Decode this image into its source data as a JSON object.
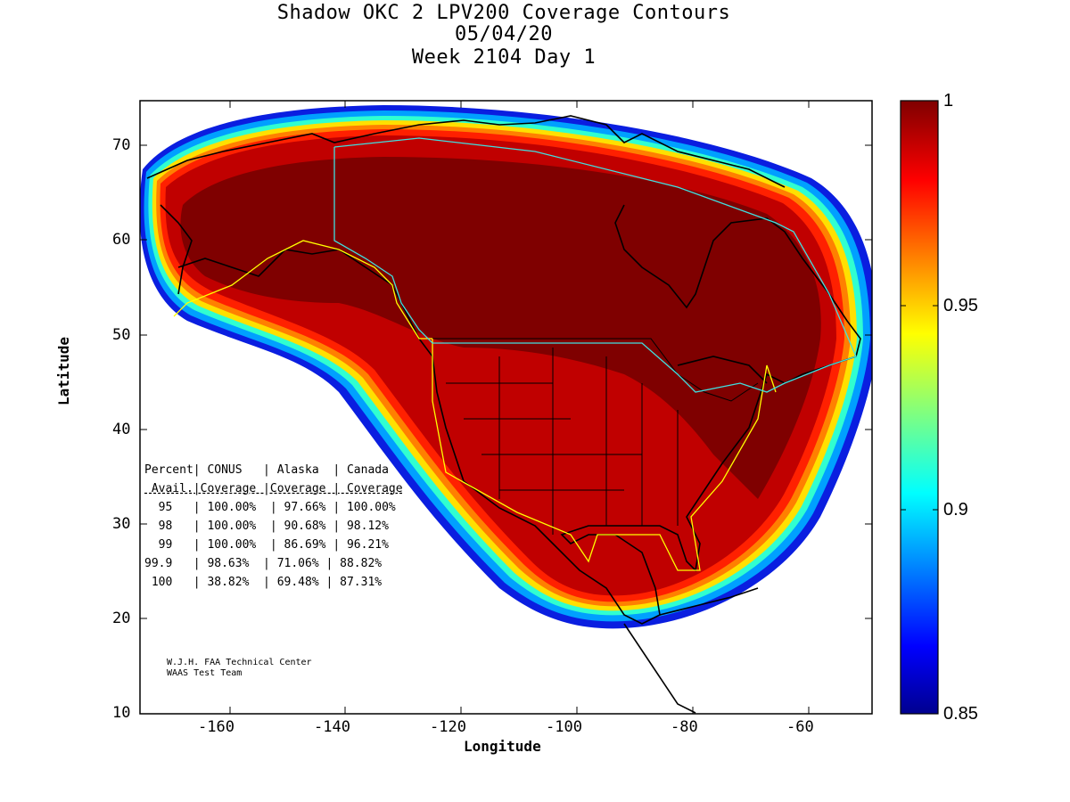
{
  "title_lines": [
    "Shadow OKC 2 LPV200 Coverage Contours",
    "05/04/20",
    "Week 2104 Day 1"
  ],
  "axes": {
    "xlabel": "Longitude",
    "ylabel": "Latitude",
    "x_ticks": [
      "-160",
      "-140",
      "-120",
      "-100",
      "-80",
      "-60"
    ],
    "y_ticks": [
      "70",
      "60",
      "50",
      "40",
      "30",
      "20",
      "10"
    ],
    "xlim": [
      -175,
      -50
    ],
    "ylim": [
      10,
      75
    ]
  },
  "colorbar": {
    "ticks": [
      "1",
      "0.95",
      "0.9",
      "0.85"
    ],
    "range": [
      0.85,
      1
    ],
    "colormap": "jet"
  },
  "stats_table": {
    "header1": "Percent| CONUS   | Alaska  | Canada",
    "header2": " Avail.|Coverage |Coverage | Coverage",
    "rows": [
      "  95   | 100.00%  | 97.66% | 100.00%",
      "  98   | 100.00%  | 90.68% | 98.12%",
      "  99   | 100.00%  | 86.69% | 96.21%",
      "99.9   | 98.63%  | 71.06% | 88.82%",
      " 100   | 38.82%  | 69.48% | 87.31%"
    ]
  },
  "credit_lines": [
    "W.J.H. FAA Technical Center",
    "WAAS Test Team"
  ],
  "colors": {
    "coverage_max": "#7f0000",
    "coverage_high": "#c00000",
    "border_line": "#ffff00",
    "faa_border": "#40e0e0"
  }
}
